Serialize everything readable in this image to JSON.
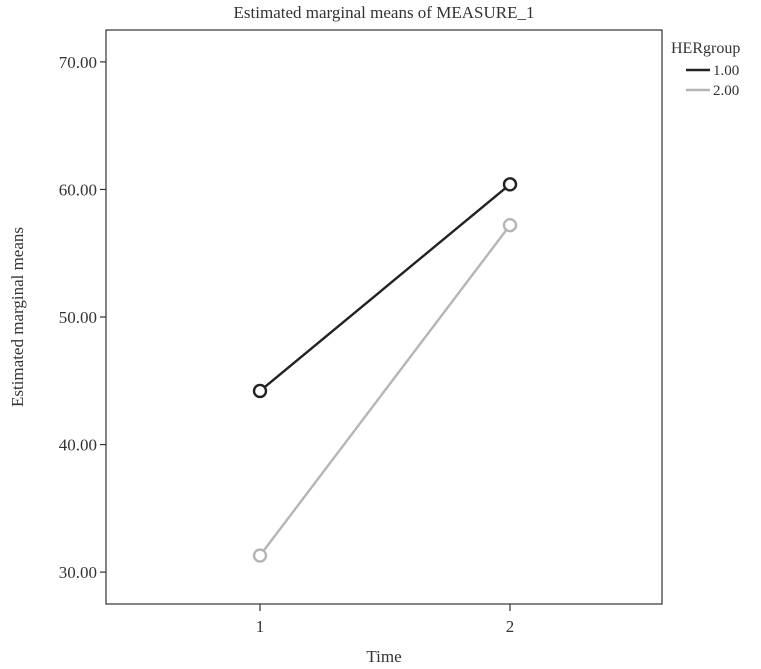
{
  "chart_data": {
    "type": "line",
    "title": "Estimated marginal means of MEASURE_1",
    "xlabel": "Time",
    "ylabel": "Estimated marginal means",
    "categories": [
      "1",
      "2"
    ],
    "ylim": [
      27.5,
      72.5
    ],
    "yticks": [
      30,
      40,
      50,
      60,
      70
    ],
    "ytick_labels": [
      "30.00",
      "40.00",
      "50.00",
      "60.00",
      "70.00"
    ],
    "grid": false,
    "legend_title": "HERgroup",
    "legend_position": "right",
    "series": [
      {
        "name": "1.00",
        "values": [
          44.2,
          60.4
        ],
        "color": "#222222"
      },
      {
        "name": "2.00",
        "values": [
          31.3,
          57.2
        ],
        "color": "#b5b5b5"
      }
    ]
  }
}
